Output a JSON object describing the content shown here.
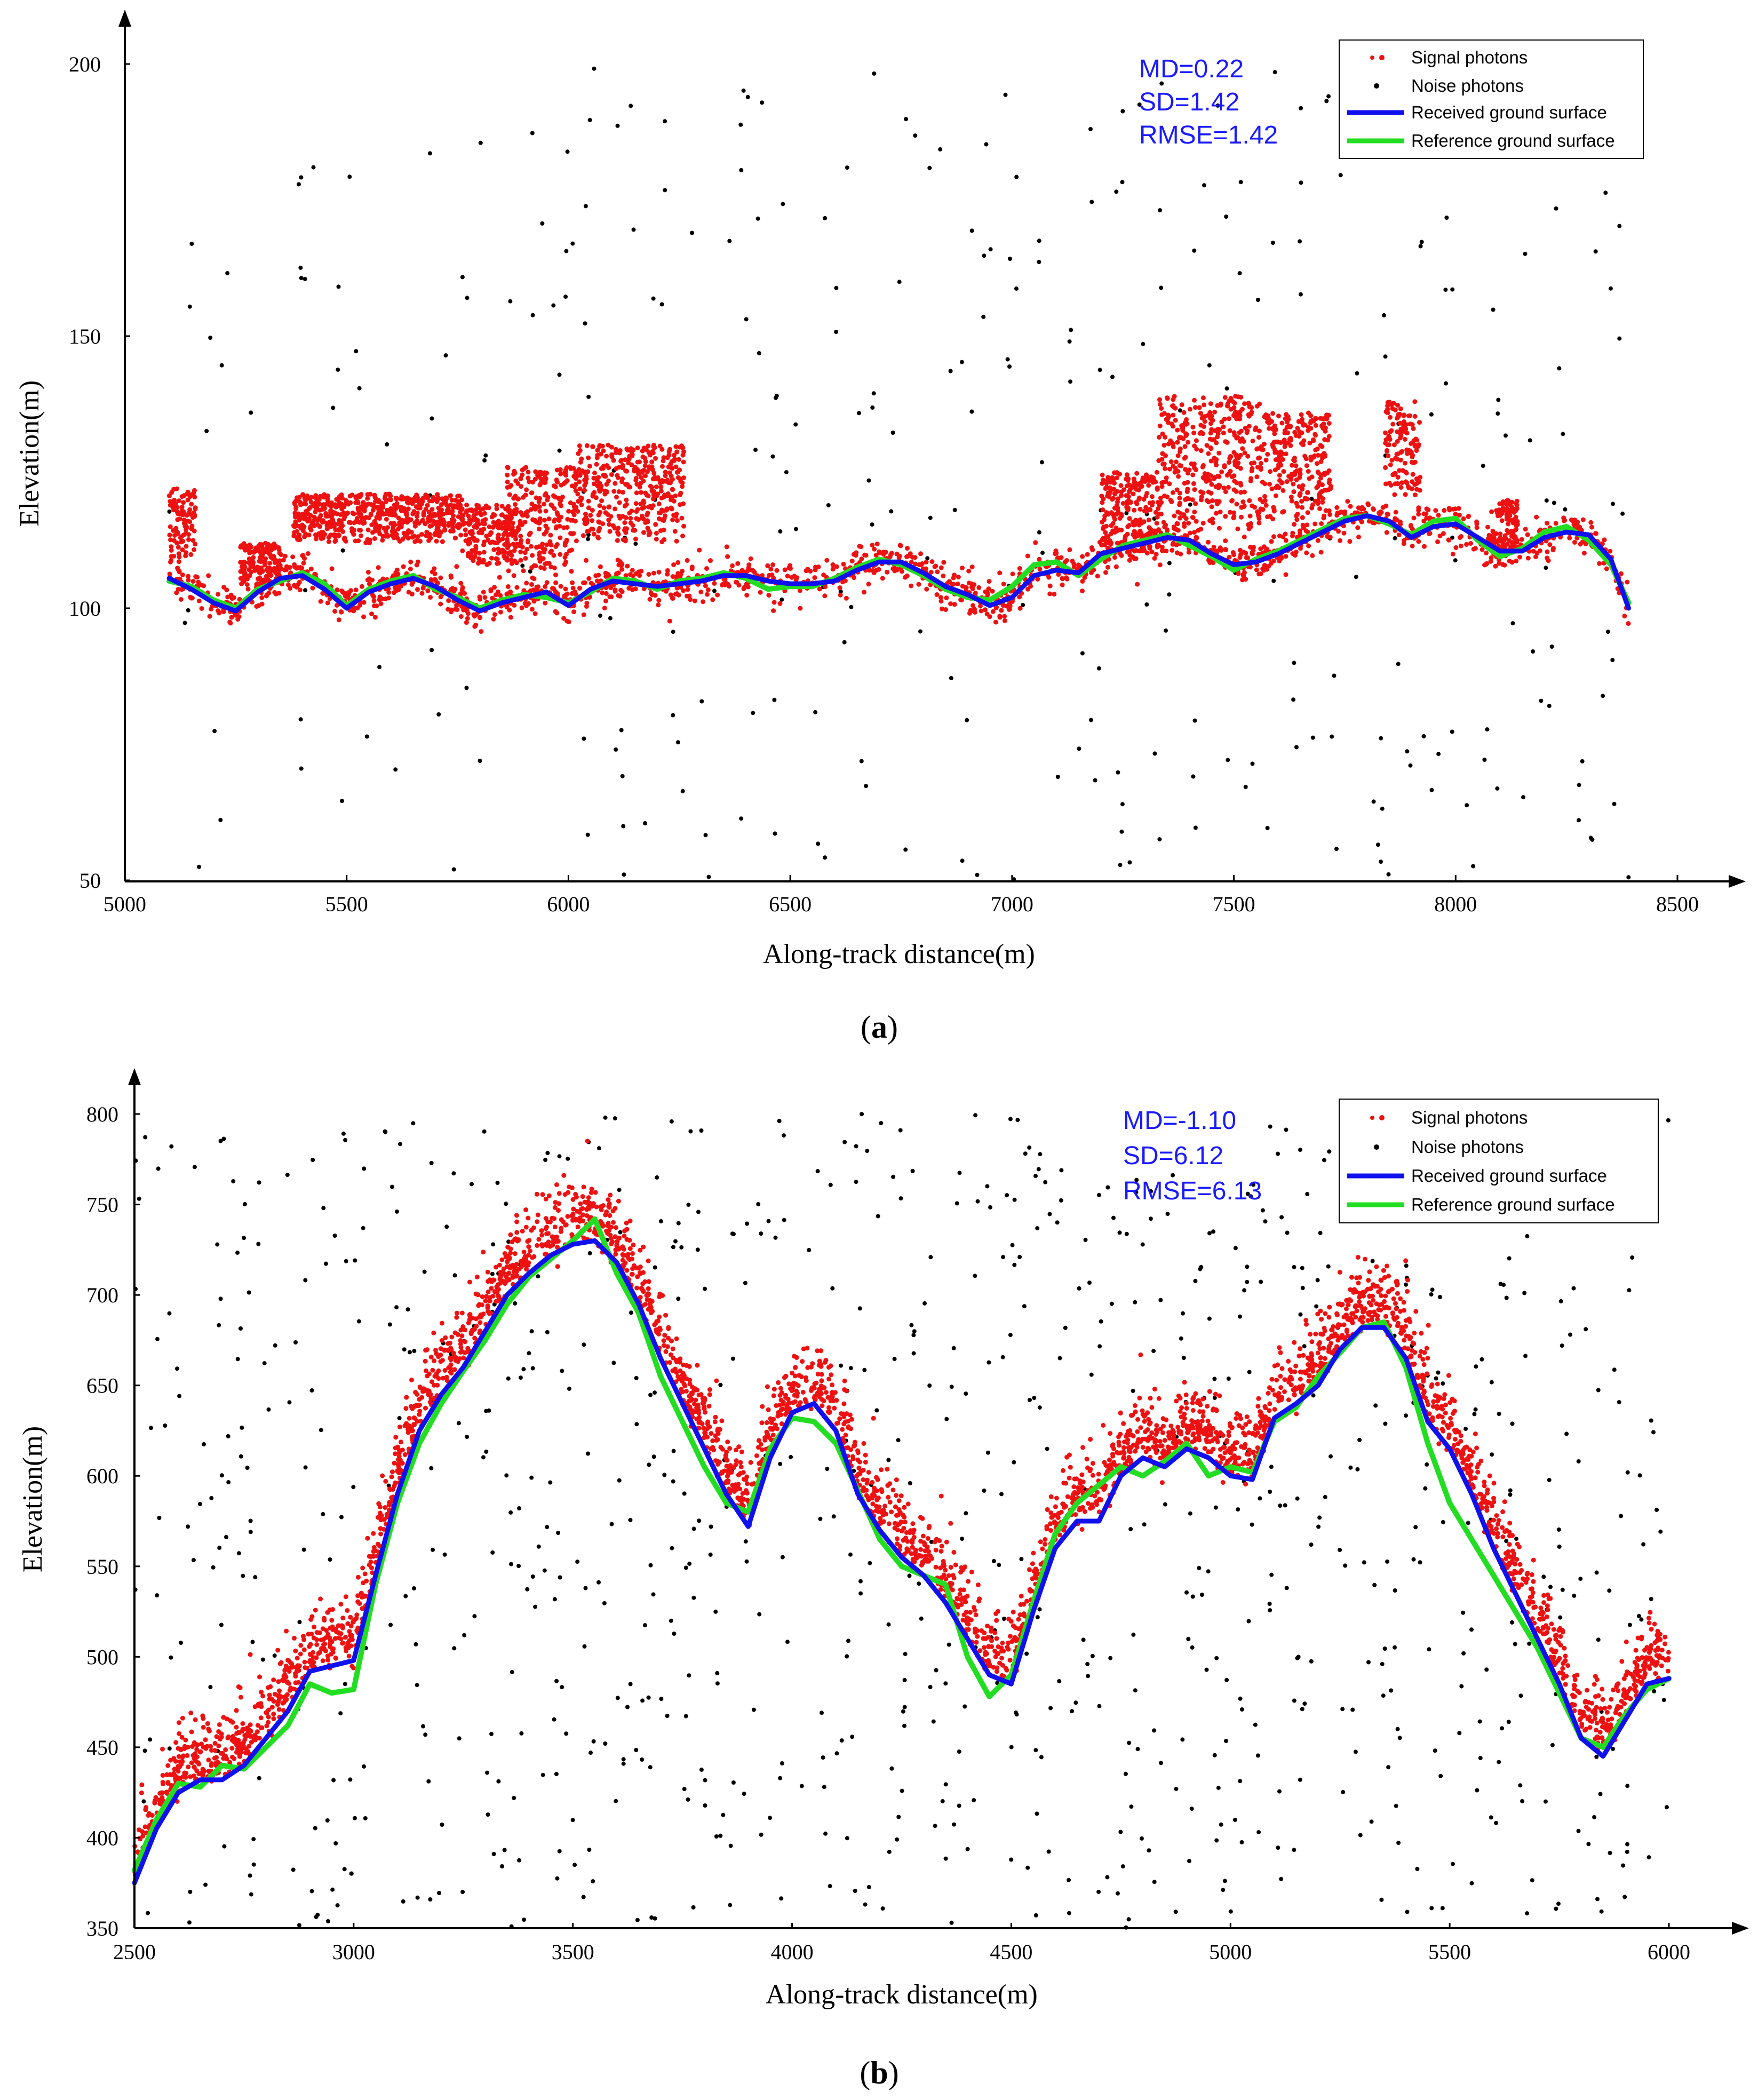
{
  "chart_data": [
    {
      "type": "scatter",
      "panel_label": "a",
      "xlabel": "Along-track distance(m)",
      "ylabel": "Elevation(m)",
      "xlim": [
        5000,
        8500
      ],
      "ylim": [
        50,
        200
      ],
      "xticks": [
        "5000",
        "5500",
        "6000",
        "6500",
        "7000",
        "7500",
        "8000",
        "8500"
      ],
      "yticks": [
        "50",
        "100",
        "150",
        "200"
      ],
      "stats": [
        "MD=0.22",
        "SD=1.42",
        "RMSE=1.42"
      ],
      "legend": {
        "position": "top-right",
        "entries": [
          {
            "label": "Signal photons",
            "kind": "dot",
            "color": "#ee1111"
          },
          {
            "label": "Noise photons",
            "kind": "dot",
            "color": "#000000"
          },
          {
            "label": "Received ground surface",
            "kind": "line",
            "color": "#1010ee"
          },
          {
            "label": "Reference ground surface",
            "kind": "line",
            "color": "#22dd22"
          }
        ]
      },
      "series": [
        {
          "name": "Received ground surface",
          "x": [
            5100,
            5150,
            5200,
            5250,
            5300,
            5350,
            5400,
            5450,
            5500,
            5550,
            5600,
            5650,
            5700,
            5750,
            5800,
            5850,
            5900,
            5950,
            6000,
            6050,
            6100,
            6150,
            6200,
            6250,
            6300,
            6350,
            6400,
            6450,
            6500,
            6550,
            6600,
            6650,
            6700,
            6750,
            6800,
            6850,
            6900,
            6950,
            7000,
            7050,
            7100,
            7150,
            7200,
            7250,
            7300,
            7350,
            7400,
            7450,
            7500,
            7550,
            7600,
            7650,
            7700,
            7750,
            7800,
            7850,
            7900,
            7950,
            8000,
            8050,
            8100,
            8150,
            8200,
            8250,
            8300,
            8350,
            8390
          ],
          "y": [
            105.5,
            103.5,
            101,
            99.5,
            103,
            105.5,
            106,
            103.5,
            100,
            103,
            104.5,
            105.5,
            104,
            101.5,
            99.5,
            101,
            102,
            103,
            100.5,
            103.5,
            105,
            104.5,
            104,
            104.5,
            105,
            106,
            106,
            105,
            104.5,
            104.5,
            105,
            107,
            108.5,
            108.5,
            106.5,
            104,
            102.5,
            100.5,
            102,
            106,
            107,
            106.5,
            110,
            111,
            112,
            113,
            112.5,
            110,
            108,
            108.5,
            110,
            112,
            114,
            116,
            117,
            116,
            113,
            115,
            115.5,
            113,
            110.5,
            110.5,
            113,
            114,
            113.5,
            109,
            100
          ]
        },
        {
          "name": "Reference ground surface",
          "x": [
            5100,
            5150,
            5200,
            5250,
            5300,
            5350,
            5400,
            5450,
            5500,
            5550,
            5600,
            5650,
            5700,
            5750,
            5800,
            5850,
            5900,
            5950,
            6000,
            6050,
            6100,
            6150,
            6200,
            6250,
            6300,
            6350,
            6400,
            6450,
            6500,
            6550,
            6600,
            6650,
            6700,
            6750,
            6800,
            6850,
            6900,
            6950,
            7000,
            7050,
            7100,
            7150,
            7200,
            7250,
            7300,
            7350,
            7400,
            7450,
            7500,
            7550,
            7600,
            7650,
            7700,
            7750,
            7800,
            7850,
            7900,
            7950,
            8000,
            8050,
            8100,
            8150,
            8200,
            8250,
            8300,
            8350,
            8390
          ],
          "y": [
            105,
            104,
            101.5,
            100,
            103.5,
            105,
            106.5,
            104.5,
            100.5,
            103.5,
            105,
            106,
            103.5,
            102,
            100,
            101.5,
            102.5,
            102,
            101,
            103,
            105.5,
            105,
            103.5,
            105,
            105.5,
            106.5,
            105.5,
            103.5,
            104,
            104,
            105.5,
            107.5,
            109,
            108,
            106,
            103.5,
            102,
            101.5,
            104,
            108,
            108.5,
            106,
            109,
            111.5,
            112.5,
            113.5,
            111.5,
            109.5,
            107,
            109,
            110.5,
            112.5,
            114.5,
            116.5,
            117,
            115.5,
            113.5,
            116,
            116.5,
            112.5,
            109.5,
            111,
            114,
            115,
            112.5,
            108,
            101
          ]
        }
      ],
      "signal_photons": "red dots scattered around the ground surface (approx. 95–118 m) with canopy returns up to ~139 m",
      "noise_photons": "black dots randomly distributed over 50–200 m"
    },
    {
      "type": "scatter",
      "panel_label": "b",
      "xlabel": "Along-track distance(m)",
      "ylabel": "Elevation(m)",
      "xlim": [
        2500,
        6000
      ],
      "ylim": [
        350,
        800
      ],
      "xticks": [
        "2500",
        "3000",
        "3500",
        "4000",
        "4500",
        "5000",
        "5500",
        "6000"
      ],
      "yticks": [
        "350",
        "400",
        "450",
        "500",
        "550",
        "600",
        "650",
        "700",
        "750",
        "800"
      ],
      "stats": [
        "MD=-1.10",
        "SD=6.12",
        "RMSE=6.13"
      ],
      "legend": {
        "position": "top-right",
        "entries": [
          {
            "label": "Signal photons",
            "kind": "dot",
            "color": "#ee1111"
          },
          {
            "label": "Noise photons",
            "kind": "dot",
            "color": "#000000"
          },
          {
            "label": "Received ground surface",
            "kind": "line",
            "color": "#1010ee"
          },
          {
            "label": "Reference ground surface",
            "kind": "line",
            "color": "#22dd22"
          }
        ]
      },
      "series": [
        {
          "name": "Received ground surface",
          "x": [
            2500,
            2550,
            2600,
            2650,
            2700,
            2750,
            2800,
            2850,
            2900,
            2950,
            3000,
            3050,
            3100,
            3150,
            3200,
            3250,
            3300,
            3350,
            3400,
            3450,
            3500,
            3550,
            3600,
            3650,
            3700,
            3750,
            3800,
            3850,
            3900,
            3950,
            4000,
            4050,
            4100,
            4150,
            4200,
            4250,
            4300,
            4350,
            4400,
            4450,
            4500,
            4550,
            4600,
            4650,
            4700,
            4750,
            4800,
            4850,
            4900,
            4950,
            5000,
            5050,
            5100,
            5150,
            5200,
            5250,
            5300,
            5350,
            5400,
            5450,
            5500,
            5550,
            5600,
            5650,
            5700,
            5750,
            5800,
            5850,
            5900,
            5950,
            6000
          ],
          "y": [
            375,
            405,
            425,
            432,
            432,
            440,
            455,
            470,
            492,
            495,
            498,
            545,
            590,
            625,
            645,
            660,
            680,
            700,
            712,
            722,
            728,
            730,
            718,
            695,
            665,
            640,
            615,
            590,
            572,
            610,
            635,
            640,
            625,
            590,
            570,
            555,
            545,
            530,
            510,
            490,
            485,
            525,
            560,
            575,
            575,
            600,
            610,
            605,
            615,
            610,
            600,
            598,
            632,
            640,
            650,
            670,
            682,
            682,
            665,
            630,
            615,
            590,
            560,
            535,
            510,
            485,
            455,
            445,
            465,
            485,
            488
          ]
        },
        {
          "name": "Reference ground surface",
          "x": [
            2500,
            2550,
            2600,
            2650,
            2700,
            2750,
            2800,
            2850,
            2900,
            2950,
            3000,
            3050,
            3100,
            3150,
            3200,
            3250,
            3300,
            3350,
            3400,
            3450,
            3500,
            3550,
            3600,
            3650,
            3700,
            3750,
            3800,
            3850,
            3900,
            3950,
            4000,
            4050,
            4100,
            4150,
            4200,
            4250,
            4300,
            4350,
            4400,
            4450,
            4500,
            4550,
            4600,
            4650,
            4700,
            4750,
            4800,
            4850,
            4900,
            4950,
            5000,
            5050,
            5100,
            5150,
            5200,
            5250,
            5300,
            5350,
            5400,
            5450,
            5500,
            5550,
            5600,
            5650,
            5700,
            5750,
            5800,
            5850,
            5900,
            5950,
            6000
          ],
          "y": [
            382,
            410,
            430,
            428,
            440,
            438,
            450,
            462,
            485,
            480,
            482,
            540,
            585,
            618,
            640,
            658,
            675,
            695,
            710,
            720,
            730,
            742,
            712,
            690,
            655,
            630,
            605,
            585,
            580,
            615,
            632,
            630,
            618,
            592,
            565,
            550,
            545,
            540,
            500,
            478,
            490,
            530,
            568,
            585,
            595,
            605,
            600,
            608,
            618,
            600,
            605,
            602,
            630,
            638,
            655,
            668,
            682,
            685,
            660,
            618,
            585,
            565,
            545,
            525,
            505,
            480,
            455,
            450,
            468,
            482,
            488
          ]
        }
      ],
      "signal_photons": "red dots following the terrain, mostly 0–40 m above the ground surface",
      "noise_photons": "black dots randomly distributed over 350–800 m"
    }
  ],
  "colors": {
    "signal": "#ee1111",
    "noise": "#000000",
    "received": "#1010ee",
    "reference": "#22dd22",
    "stats_text": "#1a1aff"
  }
}
